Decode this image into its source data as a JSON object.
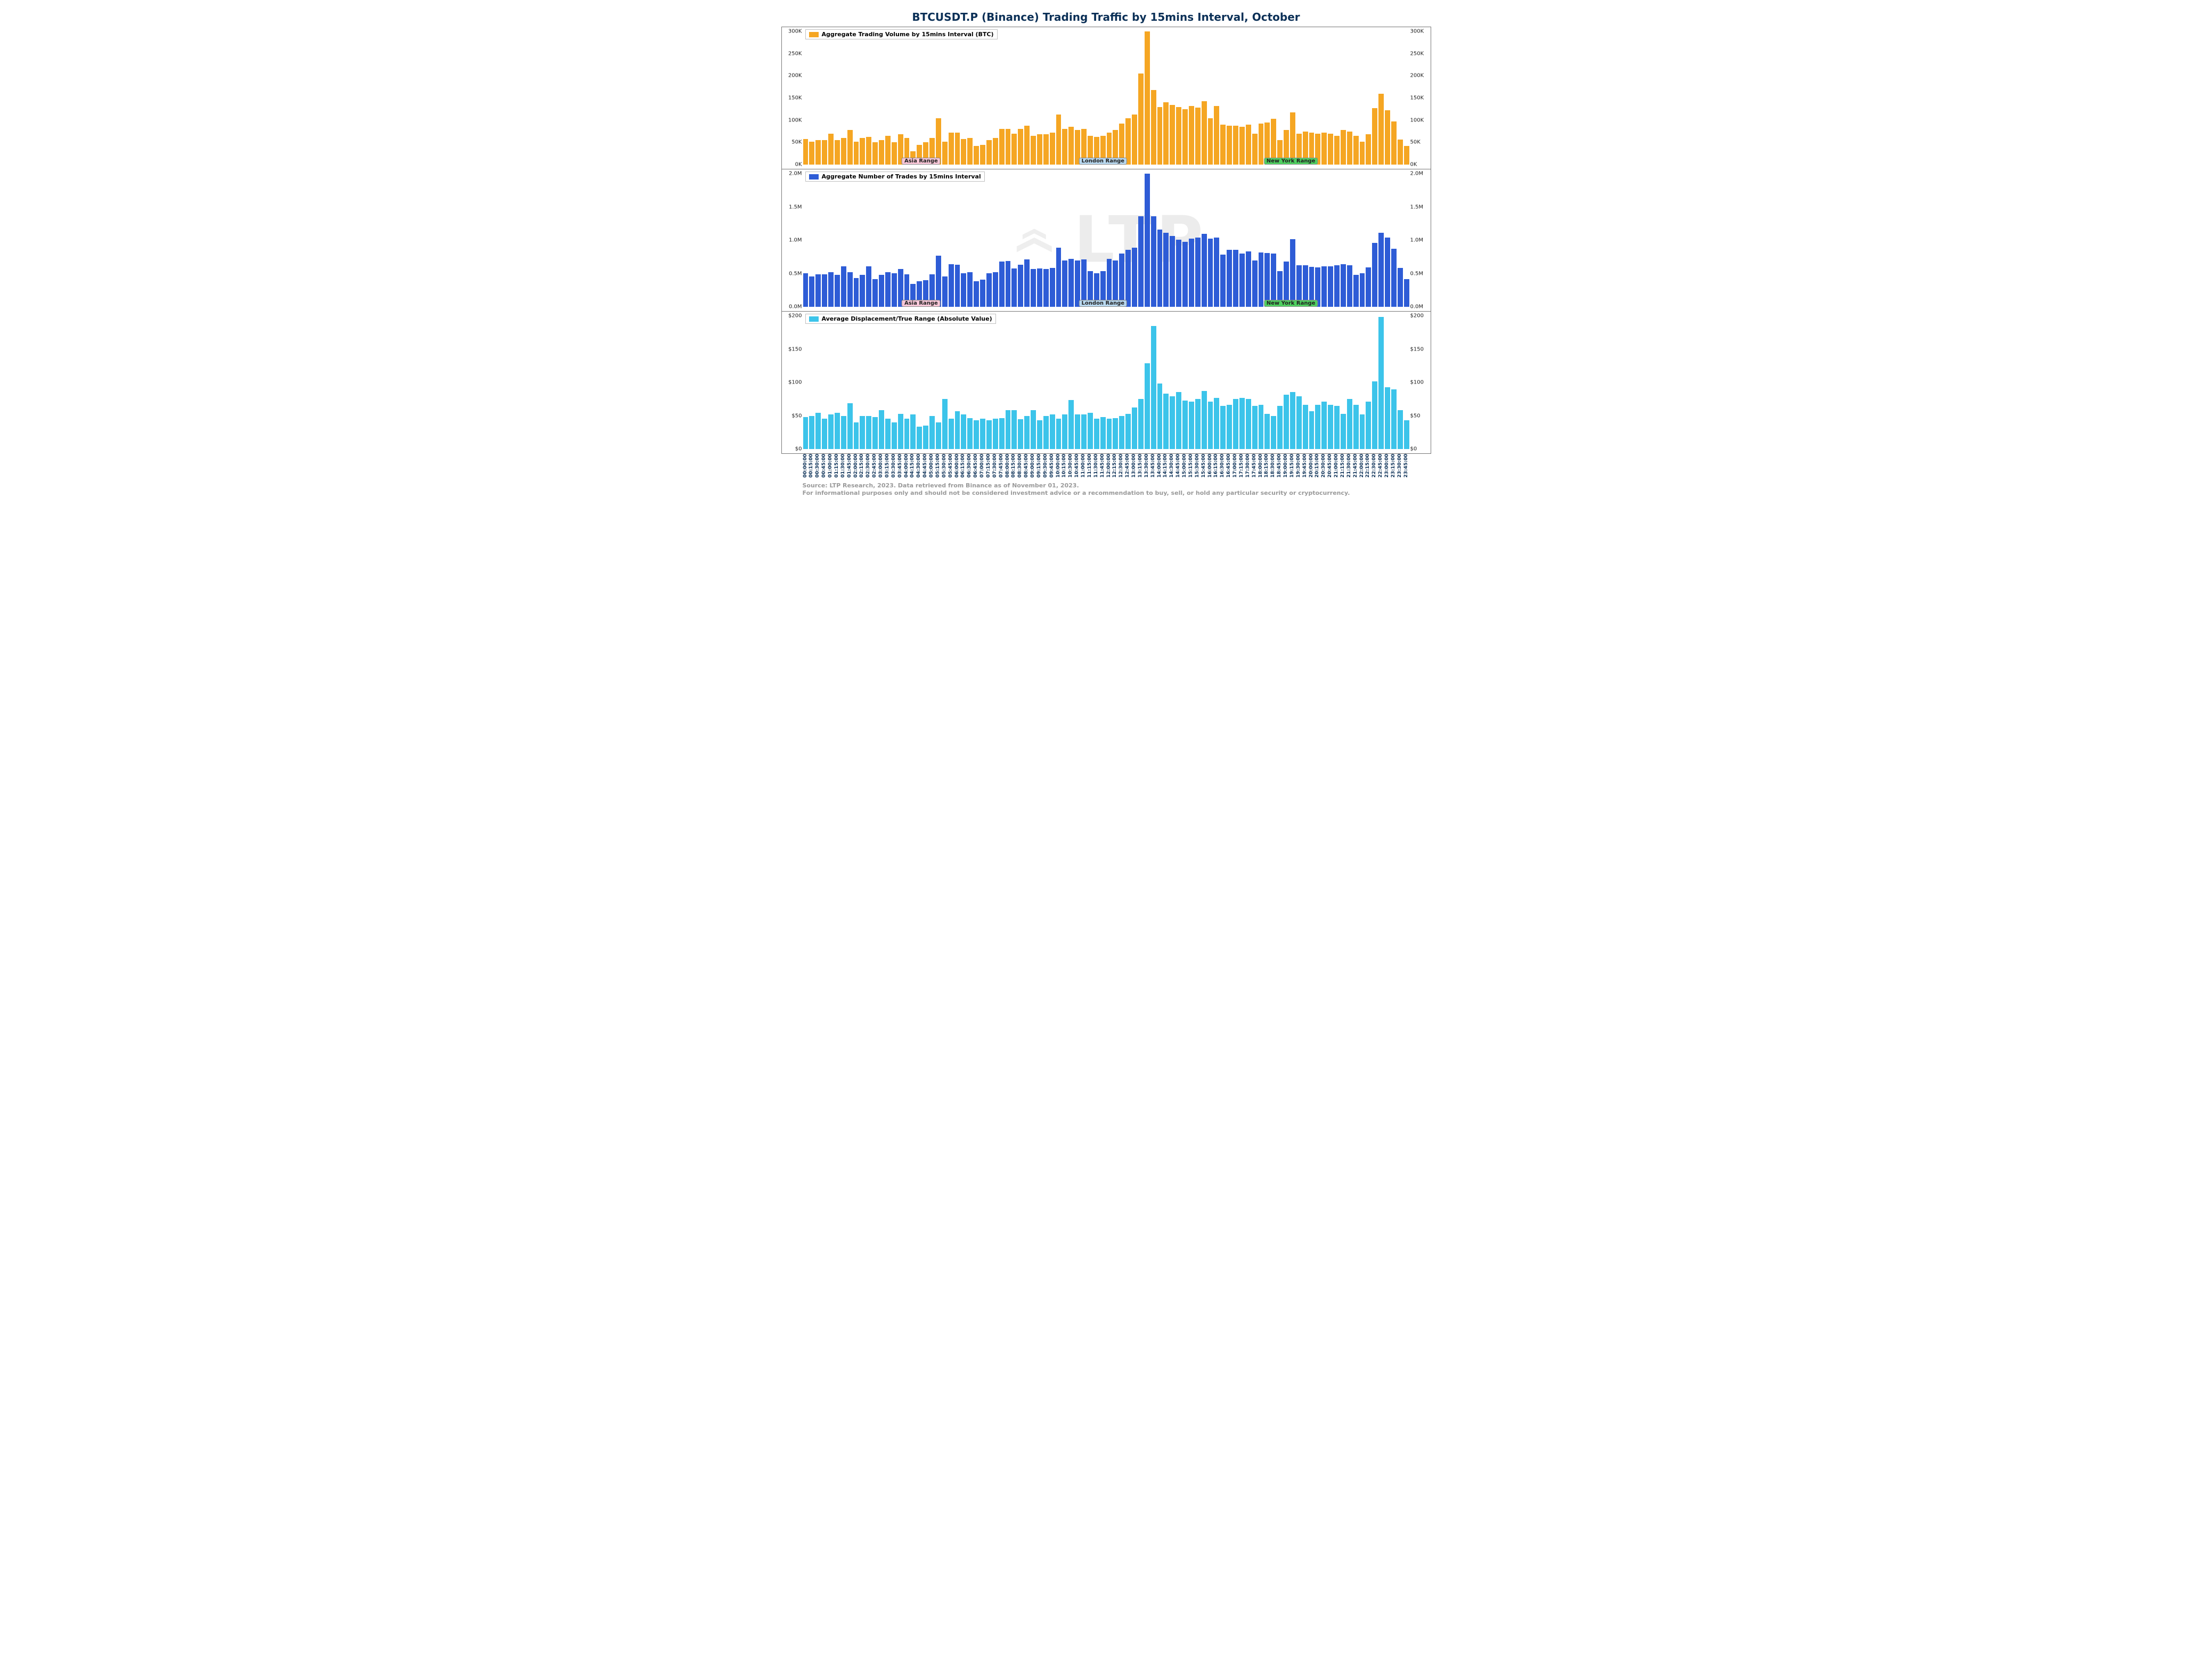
{
  "title": "BTCUSDT.P (Binance) Trading Traffic by 15mins Interval, October",
  "footnote_line1": "Source: LTP Research, 2023. Data retrieved from Binance as of November 01, 2023.",
  "footnote_line2": "For informational purposes only and should not be considered investment advice or a recommendation to buy, sell, or hold any particular security or cryptocurrency.",
  "watermark_text": "LTP",
  "x_labels": [
    "00:00:00",
    "00:15:00",
    "00:30:00",
    "00:45:00",
    "01:00:00",
    "01:15:00",
    "01:30:00",
    "01:45:00",
    "02:00:00",
    "02:15:00",
    "02:30:00",
    "02:45:00",
    "03:00:00",
    "03:15:00",
    "03:30:00",
    "03:45:00",
    "04:00:00",
    "04:15:00",
    "04:30:00",
    "04:45:00",
    "05:00:00",
    "05:15:00",
    "05:30:00",
    "05:45:00",
    "06:00:00",
    "06:15:00",
    "06:30:00",
    "06:45:00",
    "07:00:00",
    "07:15:00",
    "07:30:00",
    "07:45:00",
    "08:00:00",
    "08:15:00",
    "08:30:00",
    "08:45:00",
    "09:00:00",
    "09:15:00",
    "09:30:00",
    "09:45:00",
    "10:00:00",
    "10:15:00",
    "10:30:00",
    "10:45:00",
    "11:00:00",
    "11:15:00",
    "11:30:00",
    "11:45:00",
    "12:00:00",
    "12:15:00",
    "12:30:00",
    "12:45:00",
    "13:00:00",
    "13:15:00",
    "13:30:00",
    "13:45:00",
    "14:00:00",
    "14:15:00",
    "14:30:00",
    "14:45:00",
    "15:00:00",
    "15:15:00",
    "15:30:00",
    "15:45:00",
    "16:00:00",
    "16:15:00",
    "16:30:00",
    "16:45:00",
    "17:00:00",
    "17:15:00",
    "17:30:00",
    "17:45:00",
    "18:00:00",
    "18:15:00",
    "18:30:00",
    "18:45:00",
    "19:00:00",
    "19:15:00",
    "19:30:00",
    "19:45:00",
    "20:00:00",
    "20:15:00",
    "20:30:00",
    "20:45:00",
    "21:00:00",
    "21:15:00",
    "21:30:00",
    "21:45:00",
    "22:00:00",
    "22:15:00",
    "22:30:00",
    "22:45:00",
    "23:00:00",
    "23:15:00",
    "23:30:00",
    "23:45:00"
  ],
  "background_shades": [
    {
      "from_pct": 0,
      "to_pct": 19.8,
      "color": "#e8e8e8"
    },
    {
      "from_pct": 29.5,
      "to_pct": 45.3,
      "color": "#e8e8e8"
    },
    {
      "from_pct": 52.6,
      "to_pct": 56.8,
      "color": "#d9d9d9"
    },
    {
      "from_pct": 56.8,
      "to_pct": 68.2,
      "color": "#c9c9c9"
    },
    {
      "from_pct": 68.2,
      "to_pct": 92.2,
      "color": "#e8e8e8"
    }
  ],
  "range_markers": [
    {
      "label": "Asia Range",
      "center_pct": 19.5,
      "bg": "#f8c7d8"
    },
    {
      "label": "London Range",
      "center_pct": 49.5,
      "bg": "#b9d9f0"
    },
    {
      "label": "New York Range",
      "center_pct": 80.5,
      "bg": "#4fd060"
    }
  ],
  "panels": [
    {
      "legend": "Aggregate Trading Volume by 15mins Interval (BTC)",
      "color": "#f5a623",
      "y_ticks": [
        "0K",
        "50K",
        "100K",
        "150K",
        "200K",
        "250K",
        "300K"
      ],
      "ymax": 300,
      "values": [
        58,
        52,
        55,
        55,
        70,
        55,
        60,
        78,
        52,
        60,
        62,
        50,
        55,
        65,
        50,
        68,
        60,
        30,
        45,
        50,
        60,
        105,
        52,
        72,
        72,
        58,
        60,
        42,
        45,
        55,
        60,
        80,
        80,
        70,
        80,
        88,
        65,
        68,
        68,
        72,
        113,
        80,
        85,
        78,
        80,
        65,
        62,
        65,
        72,
        78,
        92,
        105,
        113,
        205,
        300,
        168,
        130,
        140,
        135,
        130,
        125,
        132,
        128,
        143,
        105,
        132,
        90,
        88,
        88,
        85,
        90,
        70,
        92,
        95,
        103,
        55,
        78,
        118,
        70,
        75,
        72,
        70,
        72,
        70,
        65,
        78,
        75,
        65,
        52,
        68,
        127,
        160,
        122,
        97,
        56,
        42
      ],
      "show_range_markers": true
    },
    {
      "legend": "Aggregate Number of Trades by 15mins Interval",
      "color": "#2e5cd6",
      "y_ticks": [
        "0.0M",
        "0.5M",
        "1.0M",
        "1.5M",
        "2.0M"
      ],
      "ymax": 2.3,
      "values": [
        0.58,
        0.52,
        0.56,
        0.56,
        0.6,
        0.55,
        0.7,
        0.6,
        0.5,
        0.55,
        0.7,
        0.48,
        0.55,
        0.6,
        0.58,
        0.65,
        0.56,
        0.4,
        0.44,
        0.46,
        0.56,
        0.88,
        0.52,
        0.74,
        0.73,
        0.58,
        0.6,
        0.44,
        0.47,
        0.58,
        0.6,
        0.78,
        0.79,
        0.66,
        0.73,
        0.82,
        0.65,
        0.66,
        0.65,
        0.67,
        1.02,
        0.8,
        0.83,
        0.8,
        0.82,
        0.62,
        0.58,
        0.62,
        0.83,
        0.8,
        0.92,
        0.98,
        1.02,
        1.56,
        2.3,
        1.56,
        1.33,
        1.28,
        1.22,
        1.16,
        1.12,
        1.18,
        1.2,
        1.26,
        1.18,
        1.2,
        0.9,
        0.98,
        0.98,
        0.92,
        0.96,
        0.8,
        0.94,
        0.93,
        0.92,
        0.62,
        0.78,
        1.17,
        0.72,
        0.72,
        0.69,
        0.68,
        0.7,
        0.7,
        0.72,
        0.74,
        0.72,
        0.55,
        0.58,
        0.68,
        1.1,
        1.28,
        1.2,
        1.0,
        0.67,
        0.48
      ],
      "show_range_markers": true
    },
    {
      "legend": "Average Displacement/True Range (Absolute Value)",
      "color": "#3cc4ea",
      "y_ticks": [
        "$0",
        "$50",
        "$100",
        "$150",
        "$200"
      ],
      "prefix": "$",
      "ymax": 240,
      "values": [
        58,
        60,
        65,
        55,
        62,
        65,
        60,
        83,
        48,
        60,
        60,
        58,
        70,
        55,
        48,
        63,
        55,
        62,
        40,
        42,
        60,
        48,
        90,
        55,
        68,
        62,
        56,
        52,
        55,
        52,
        55,
        56,
        70,
        70,
        54,
        60,
        70,
        52,
        60,
        62,
        55,
        62,
        88,
        62,
        62,
        65,
        55,
        58,
        55,
        56,
        60,
        63,
        75,
        90,
        155,
        222,
        118,
        100,
        95,
        103,
        87,
        85,
        90,
        105,
        85,
        92,
        78,
        80,
        90,
        92,
        90,
        78,
        80,
        63,
        60,
        78,
        98,
        103,
        95,
        80,
        68,
        80,
        85,
        80,
        78,
        63,
        90,
        80,
        62,
        85,
        122,
        238,
        111,
        108,
        70,
        52
      ],
      "show_range_markers": false
    }
  ],
  "style": {
    "title_color": "#0b3057",
    "title_fontsize": 20,
    "axis_fontsize": 10,
    "xaxis_color": "#0b3057",
    "border_color": "#777777",
    "background_color": "#ffffff",
    "footnote_color": "#9a9a9a",
    "watermark_opacity": 0.07
  }
}
